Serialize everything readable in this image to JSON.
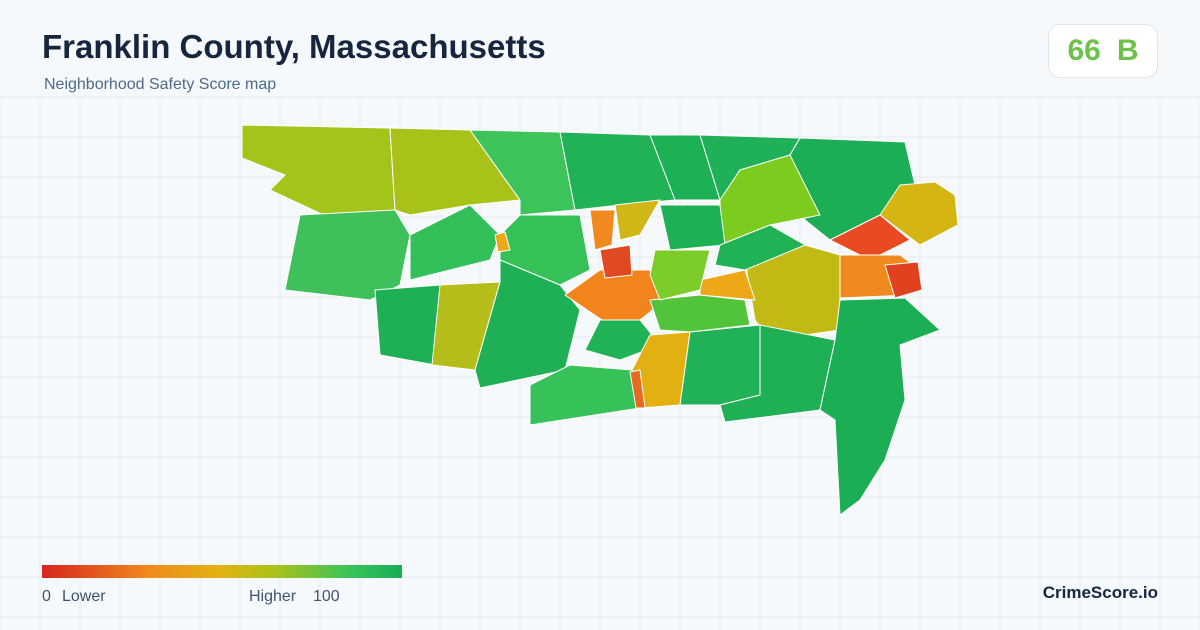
{
  "header": {
    "title": "Franklin County, Massachusetts",
    "subtitle": "Neighborhood Safety Score map"
  },
  "score": {
    "value": 66,
    "grade": "B"
  },
  "legend": {
    "min": 0,
    "min_label": "Lower",
    "max_label": "Higher",
    "max": 100
  },
  "brand": "CrimeScore.io"
}
